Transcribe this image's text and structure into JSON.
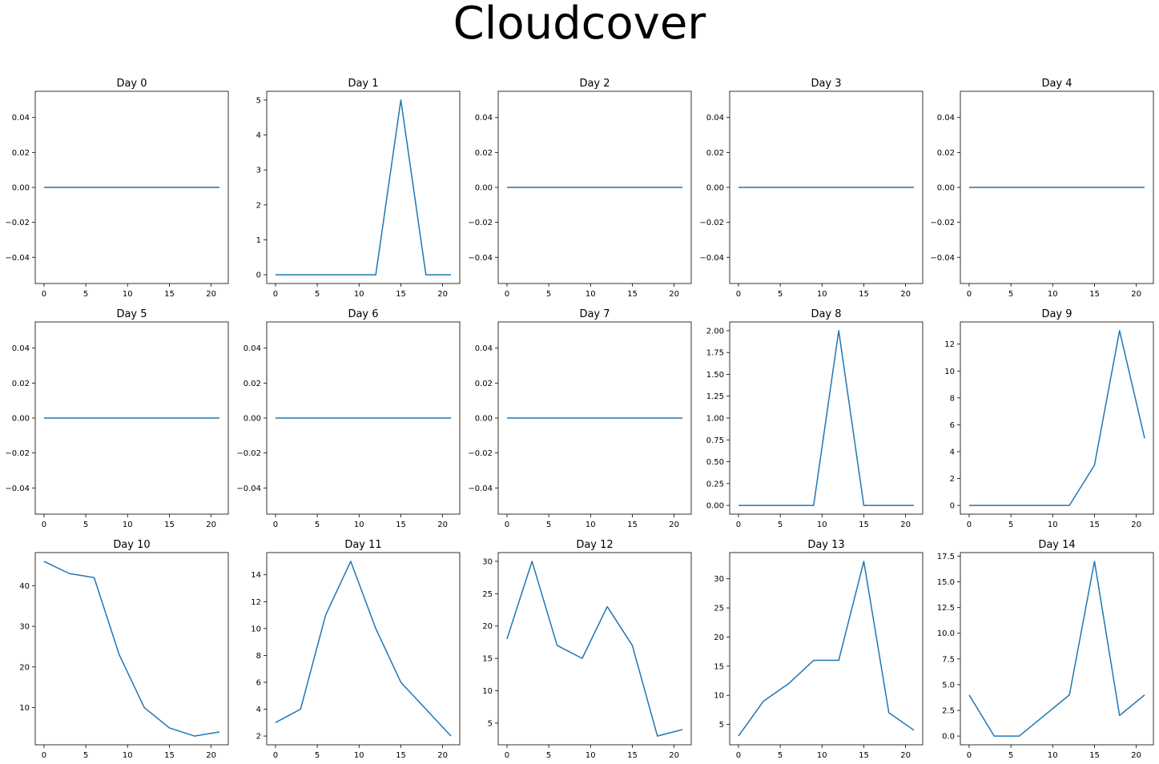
{
  "suptitle": "Cloudcover",
  "chart_data": [
    {
      "type": "line",
      "title": "Day 0",
      "x": [
        0,
        3,
        6,
        9,
        12,
        15,
        18,
        21
      ],
      "values": [
        0,
        0,
        0,
        0,
        0,
        0,
        0,
        0
      ],
      "ylim": [
        -0.055,
        0.055
      ],
      "yticks": [
        -0.04,
        -0.02,
        0.0,
        0.02,
        0.04
      ],
      "ytick_labels": [
        "−0.04",
        "−0.02",
        "0.00",
        "0.02",
        "0.04"
      ],
      "xticks": [
        0,
        5,
        10,
        15,
        20
      ]
    },
    {
      "type": "line",
      "title": "Day 1",
      "x": [
        0,
        3,
        6,
        9,
        12,
        15,
        18,
        21
      ],
      "values": [
        0,
        0,
        0,
        0,
        0,
        5,
        0,
        0
      ],
      "ylim": [
        -0.25,
        5.25
      ],
      "yticks": [
        0,
        1,
        2,
        3,
        4,
        5
      ],
      "ytick_labels": [
        "0",
        "1",
        "2",
        "3",
        "4",
        "5"
      ],
      "xticks": [
        0,
        5,
        10,
        15,
        20
      ]
    },
    {
      "type": "line",
      "title": "Day 2",
      "x": [
        0,
        3,
        6,
        9,
        12,
        15,
        18,
        21
      ],
      "values": [
        0,
        0,
        0,
        0,
        0,
        0,
        0,
        0
      ],
      "ylim": [
        -0.055,
        0.055
      ],
      "yticks": [
        -0.04,
        -0.02,
        0.0,
        0.02,
        0.04
      ],
      "ytick_labels": [
        "−0.04",
        "−0.02",
        "0.00",
        "0.02",
        "0.04"
      ],
      "xticks": [
        0,
        5,
        10,
        15,
        20
      ]
    },
    {
      "type": "line",
      "title": "Day 3",
      "x": [
        0,
        3,
        6,
        9,
        12,
        15,
        18,
        21
      ],
      "values": [
        0,
        0,
        0,
        0,
        0,
        0,
        0,
        0
      ],
      "ylim": [
        -0.055,
        0.055
      ],
      "yticks": [
        -0.04,
        -0.02,
        0.0,
        0.02,
        0.04
      ],
      "ytick_labels": [
        "−0.04",
        "−0.02",
        "0.00",
        "0.02",
        "0.04"
      ],
      "xticks": [
        0,
        5,
        10,
        15,
        20
      ]
    },
    {
      "type": "line",
      "title": "Day 4",
      "x": [
        0,
        3,
        6,
        9,
        12,
        15,
        18,
        21
      ],
      "values": [
        0,
        0,
        0,
        0,
        0,
        0,
        0,
        0
      ],
      "ylim": [
        -0.055,
        0.055
      ],
      "yticks": [
        -0.04,
        -0.02,
        0.0,
        0.02,
        0.04
      ],
      "ytick_labels": [
        "−0.04",
        "−0.02",
        "0.00",
        "0.02",
        "0.04"
      ],
      "xticks": [
        0,
        5,
        10,
        15,
        20
      ]
    },
    {
      "type": "line",
      "title": "Day 5",
      "x": [
        0,
        3,
        6,
        9,
        12,
        15,
        18,
        21
      ],
      "values": [
        0,
        0,
        0,
        0,
        0,
        0,
        0,
        0
      ],
      "ylim": [
        -0.055,
        0.055
      ],
      "yticks": [
        -0.04,
        -0.02,
        0.0,
        0.02,
        0.04
      ],
      "ytick_labels": [
        "−0.04",
        "−0.02",
        "0.00",
        "0.02",
        "0.04"
      ],
      "xticks": [
        0,
        5,
        10,
        15,
        20
      ]
    },
    {
      "type": "line",
      "title": "Day 6",
      "x": [
        0,
        3,
        6,
        9,
        12,
        15,
        18,
        21
      ],
      "values": [
        0,
        0,
        0,
        0,
        0,
        0,
        0,
        0
      ],
      "ylim": [
        -0.055,
        0.055
      ],
      "yticks": [
        -0.04,
        -0.02,
        0.0,
        0.02,
        0.04
      ],
      "ytick_labels": [
        "−0.04",
        "−0.02",
        "0.00",
        "0.02",
        "0.04"
      ],
      "xticks": [
        0,
        5,
        10,
        15,
        20
      ]
    },
    {
      "type": "line",
      "title": "Day 7",
      "x": [
        0,
        3,
        6,
        9,
        12,
        15,
        18,
        21
      ],
      "values": [
        0,
        0,
        0,
        0,
        0,
        0,
        0,
        0
      ],
      "ylim": [
        -0.055,
        0.055
      ],
      "yticks": [
        -0.04,
        -0.02,
        0.0,
        0.02,
        0.04
      ],
      "ytick_labels": [
        "−0.04",
        "−0.02",
        "0.00",
        "0.02",
        "0.04"
      ],
      "xticks": [
        0,
        5,
        10,
        15,
        20
      ]
    },
    {
      "type": "line",
      "title": "Day 8",
      "x": [
        0,
        3,
        6,
        9,
        12,
        15,
        18,
        21
      ],
      "values": [
        0,
        0,
        0,
        0,
        2,
        0,
        0,
        0
      ],
      "ylim": [
        -0.1,
        2.1
      ],
      "yticks": [
        0,
        0.25,
        0.5,
        0.75,
        1.0,
        1.25,
        1.5,
        1.75,
        2.0
      ],
      "ytick_labels": [
        "0.00",
        "0.25",
        "0.50",
        "0.75",
        "1.00",
        "1.25",
        "1.50",
        "1.75",
        "2.00"
      ],
      "xticks": [
        0,
        5,
        10,
        15,
        20
      ]
    },
    {
      "type": "line",
      "title": "Day 9",
      "x": [
        0,
        3,
        6,
        9,
        12,
        15,
        18,
        21
      ],
      "values": [
        0,
        0,
        0,
        0,
        0,
        3,
        13,
        5
      ],
      "ylim": [
        -0.65,
        13.65
      ],
      "yticks": [
        0,
        2,
        4,
        6,
        8,
        10,
        12
      ],
      "ytick_labels": [
        "0",
        "2",
        "4",
        "6",
        "8",
        "10",
        "12"
      ],
      "xticks": [
        0,
        5,
        10,
        15,
        20
      ]
    },
    {
      "type": "line",
      "title": "Day 10",
      "x": [
        0,
        3,
        6,
        9,
        12,
        15,
        18,
        21
      ],
      "values": [
        46,
        43,
        42,
        23,
        10,
        5,
        3,
        4
      ],
      "ylim": [
        0.85,
        48.15
      ],
      "yticks": [
        10,
        20,
        30,
        40
      ],
      "ytick_labels": [
        "10",
        "20",
        "30",
        "40"
      ],
      "xticks": [
        0,
        5,
        10,
        15,
        20
      ]
    },
    {
      "type": "line",
      "title": "Day 11",
      "x": [
        0,
        3,
        6,
        9,
        12,
        15,
        18,
        21
      ],
      "values": [
        3,
        4,
        11,
        15,
        10,
        6,
        4,
        2
      ],
      "ylim": [
        1.35,
        15.65
      ],
      "yticks": [
        2,
        4,
        6,
        8,
        10,
        12,
        14
      ],
      "ytick_labels": [
        "2",
        "4",
        "6",
        "8",
        "10",
        "12",
        "14"
      ],
      "xticks": [
        0,
        5,
        10,
        15,
        20
      ]
    },
    {
      "type": "line",
      "title": "Day 12",
      "x": [
        0,
        3,
        6,
        9,
        12,
        15,
        18,
        21
      ],
      "values": [
        18,
        30,
        17,
        15,
        23,
        17,
        3,
        4
      ],
      "ylim": [
        1.65,
        31.35
      ],
      "yticks": [
        5,
        10,
        15,
        20,
        25,
        30
      ],
      "ytick_labels": [
        "5",
        "10",
        "15",
        "20",
        "25",
        "30"
      ],
      "xticks": [
        0,
        5,
        10,
        15,
        20
      ]
    },
    {
      "type": "line",
      "title": "Day 13",
      "x": [
        0,
        3,
        6,
        9,
        12,
        15,
        18,
        21
      ],
      "values": [
        3,
        9,
        12,
        16,
        16,
        33,
        7,
        4
      ],
      "ylim": [
        1.5,
        34.5
      ],
      "yticks": [
        5,
        10,
        15,
        20,
        25,
        30
      ],
      "ytick_labels": [
        "5",
        "10",
        "15",
        "20",
        "25",
        "30"
      ],
      "xticks": [
        0,
        5,
        10,
        15,
        20
      ]
    },
    {
      "type": "line",
      "title": "Day 14",
      "x": [
        0,
        3,
        6,
        9,
        12,
        15,
        18,
        21
      ],
      "values": [
        4,
        0,
        0,
        2,
        4,
        17,
        2,
        4
      ],
      "ylim": [
        -0.85,
        17.85
      ],
      "yticks": [
        0,
        2.5,
        5,
        7.5,
        10,
        12.5,
        15,
        17.5
      ],
      "ytick_labels": [
        "0.0",
        "2.5",
        "5.0",
        "7.5",
        "10.0",
        "12.5",
        "15.0",
        "17.5"
      ],
      "xticks": [
        0,
        5,
        10,
        15,
        20
      ]
    }
  ],
  "colors": {
    "line": "#1f77b4",
    "axes": "#000000"
  }
}
